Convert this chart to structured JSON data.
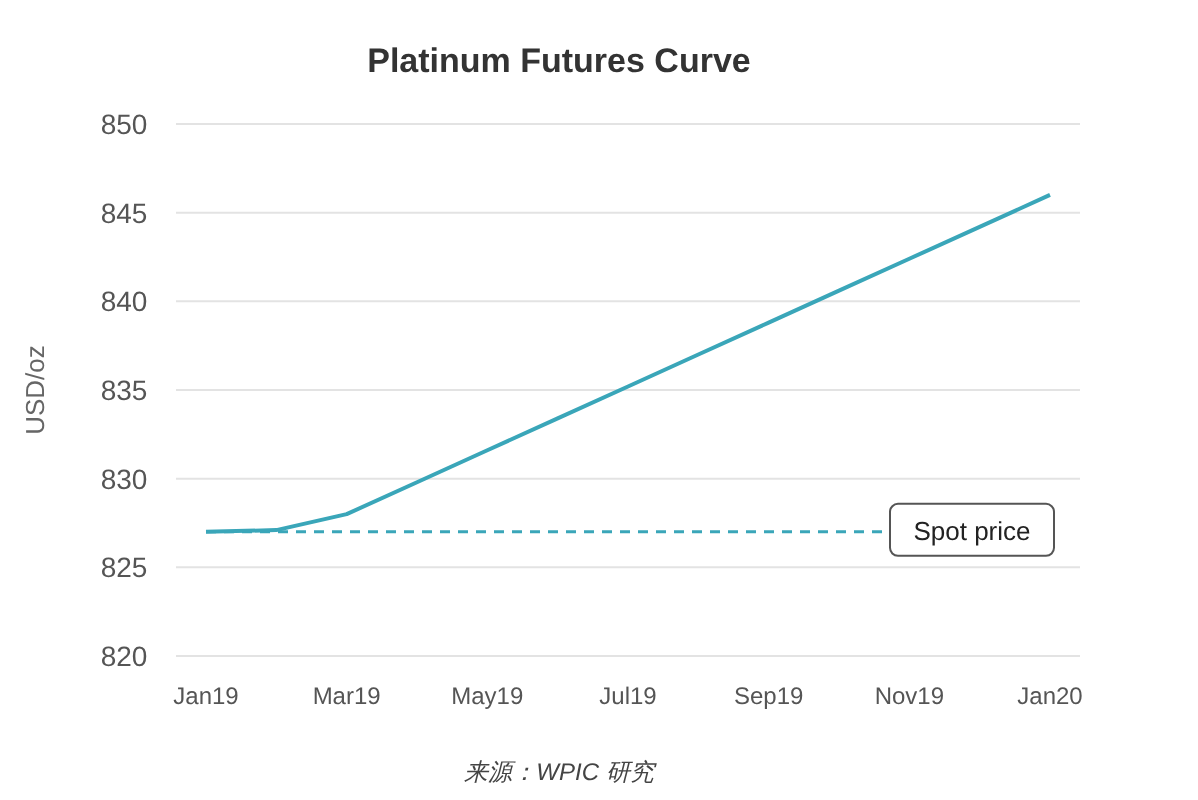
{
  "chart_data": {
    "type": "line",
    "title": "Platinum Futures Curve",
    "ylabel": "USD/oz",
    "categories": [
      "Jan19",
      null,
      "Mar19",
      null,
      "May19",
      null,
      "Jul19",
      null,
      "Sep19",
      null,
      "Nov19",
      null,
      "Jan20"
    ],
    "series": [
      {
        "color": "#3aa6b9",
        "values": [
          827,
          827.1,
          828,
          829.8,
          831.6,
          833.4,
          835.2,
          837,
          838.8,
          840.6,
          842.4,
          844.2,
          846
        ]
      }
    ],
    "ylim": [
      820,
      850
    ],
    "yticks": [
      820,
      825,
      830,
      835,
      840,
      845,
      850
    ],
    "grid": "y",
    "ref_lines": [
      {
        "axis": "y",
        "value": 827,
        "label": "Spot price",
        "color": "#3aa6b9",
        "line_style": "dashed"
      }
    ],
    "annotations": [
      "来源：WPIC 研究"
    ]
  }
}
